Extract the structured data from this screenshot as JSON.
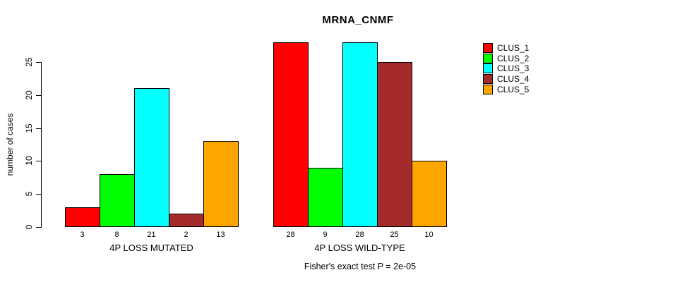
{
  "chart_data": {
    "type": "bar",
    "title": "MRNA_CNMF",
    "ylabel": "number of cases",
    "xlabel": "",
    "annotation": "Fisher's exact test P = 2e-05",
    "categories": [
      "4P LOSS MUTATED",
      "4P LOSS WILD-TYPE"
    ],
    "series": [
      {
        "name": "CLUS_1",
        "color": "#FF0000",
        "values": [
          3,
          28
        ]
      },
      {
        "name": "CLUS_2",
        "color": "#00FF00",
        "values": [
          8,
          9
        ]
      },
      {
        "name": "CLUS_3",
        "color": "#00FFFF",
        "values": [
          21,
          28
        ]
      },
      {
        "name": "CLUS_4",
        "color": "#A52A2A",
        "values": [
          2,
          25
        ]
      },
      {
        "name": "CLUS_5",
        "color": "#FFA500",
        "values": [
          13,
          10
        ]
      }
    ],
    "yticks": [
      0,
      5,
      10,
      15,
      20,
      25
    ],
    "ylim": [
      0,
      28
    ],
    "bar_value_labels_shown": true,
    "legend_position": "right",
    "grid": false,
    "axis_color": "#000000",
    "background_color": "#FFFFFF"
  }
}
